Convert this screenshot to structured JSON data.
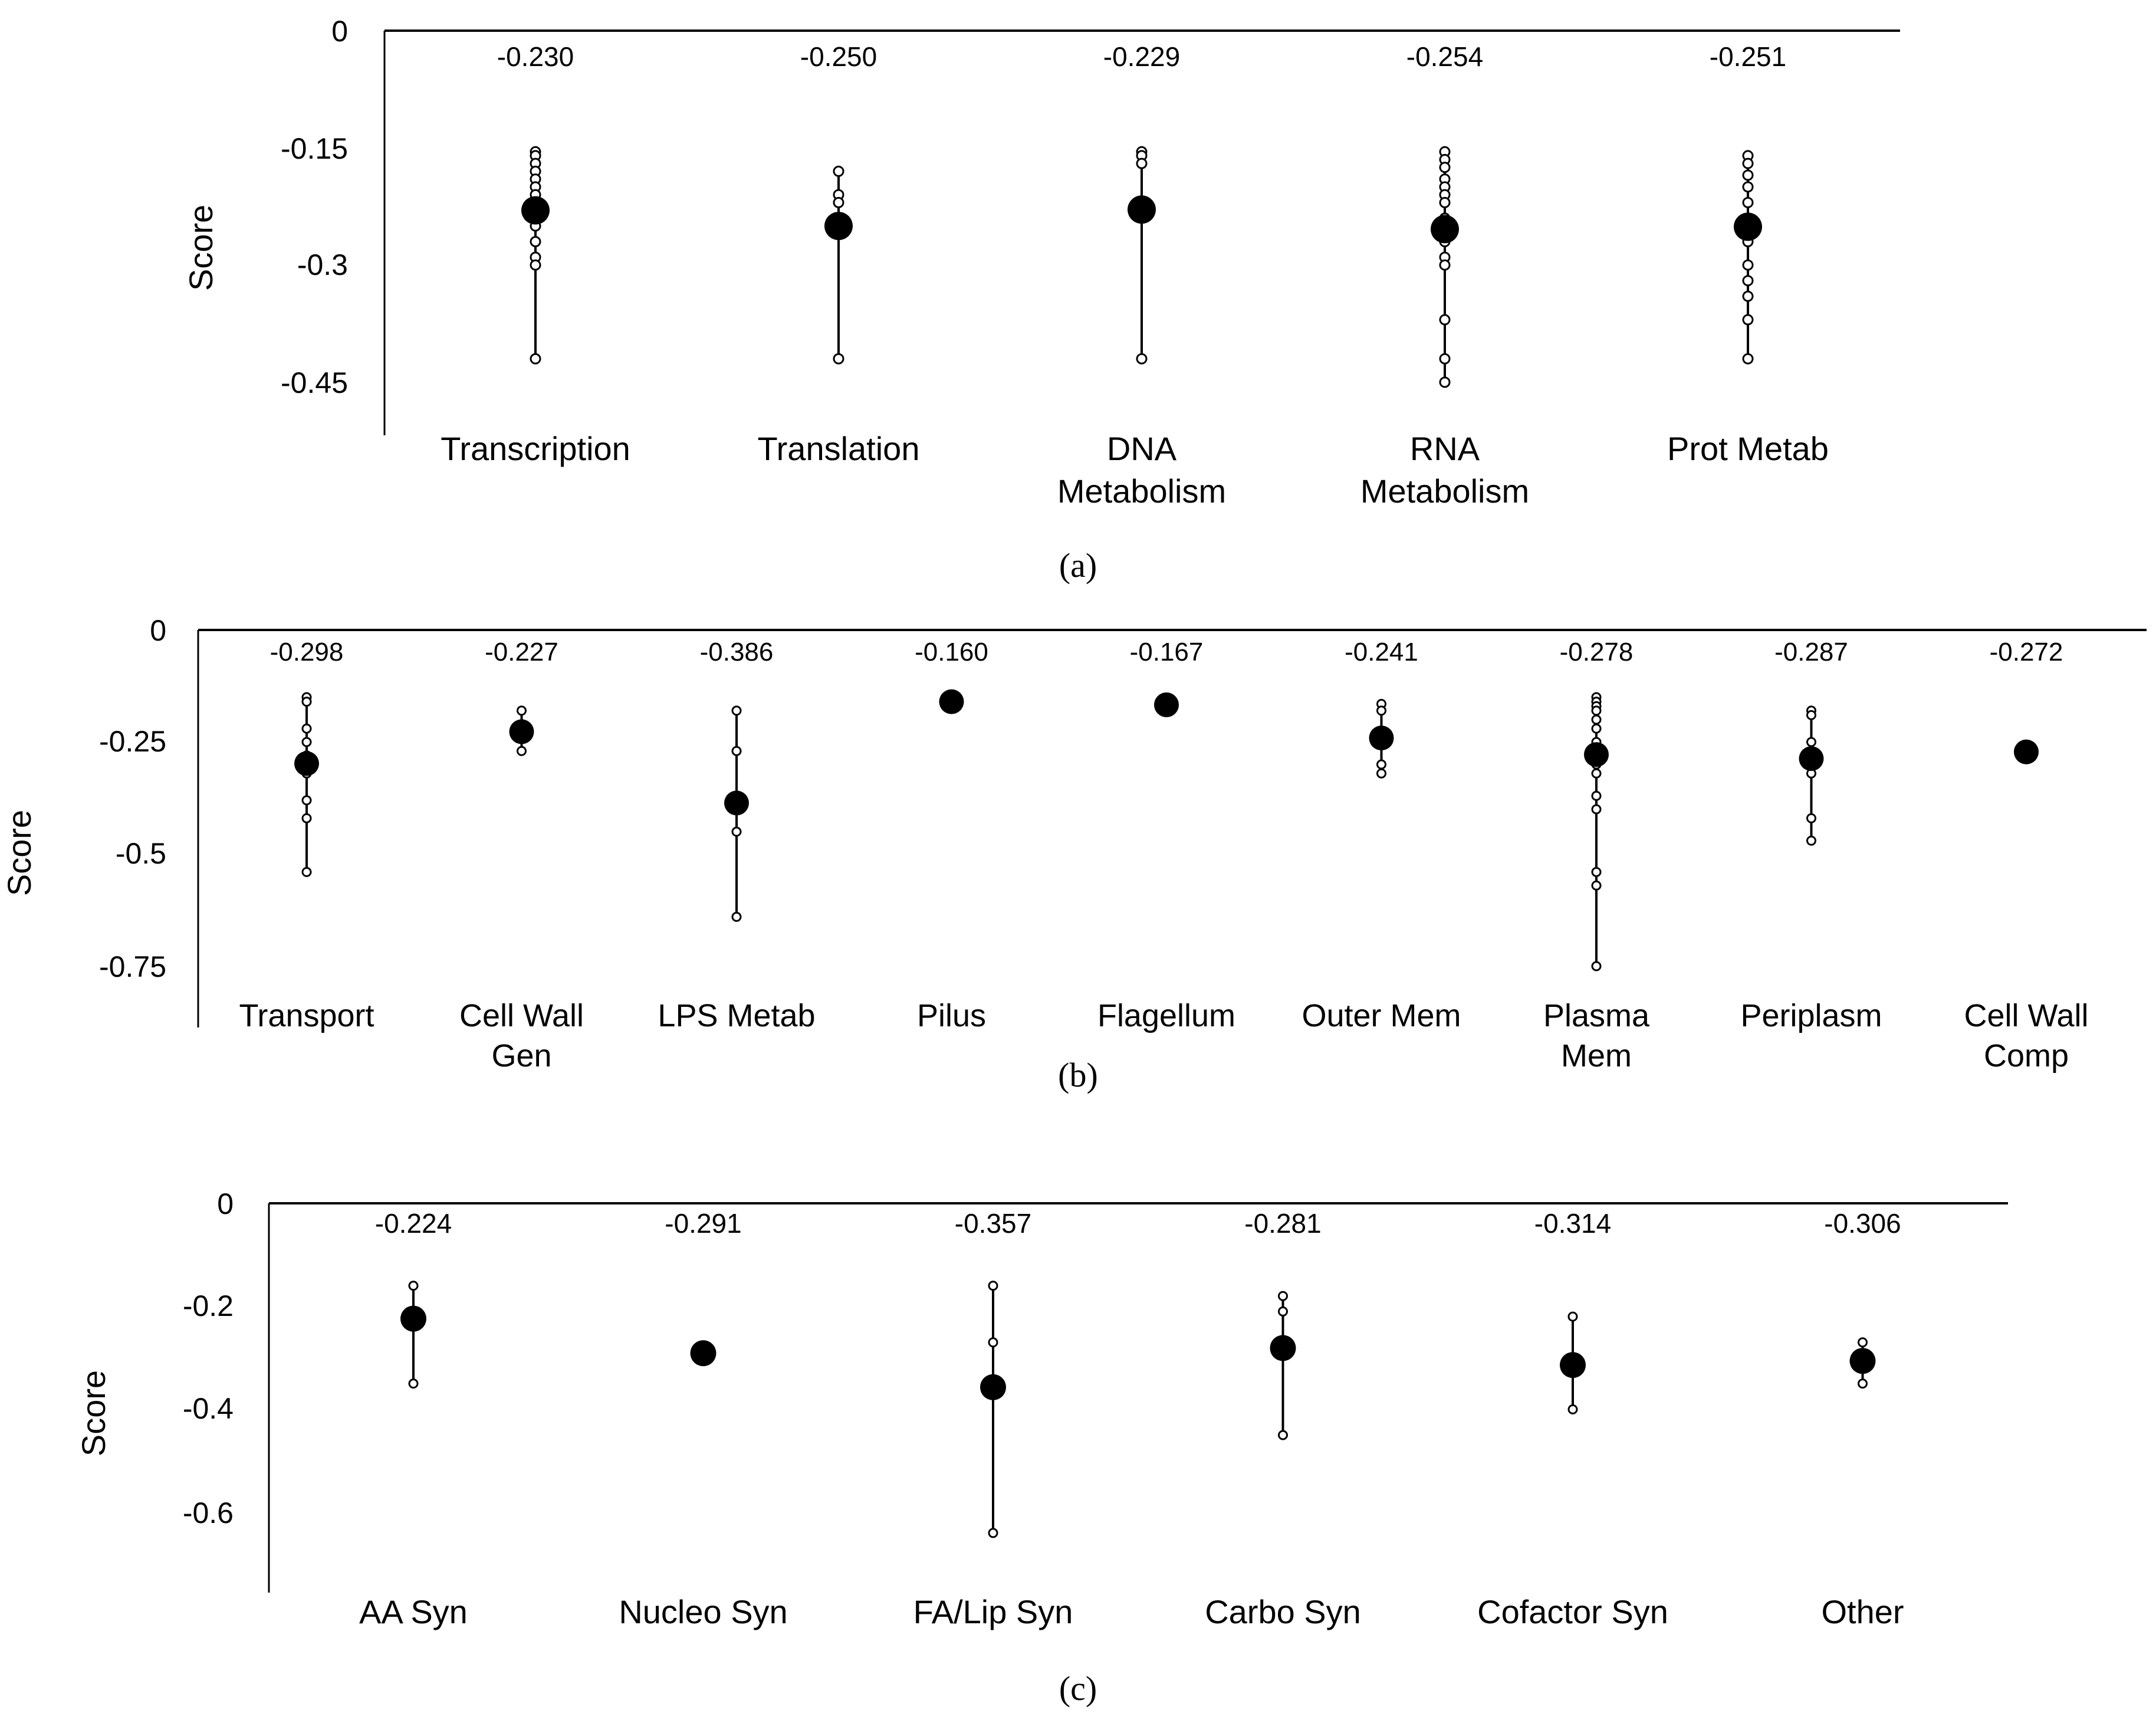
{
  "figure": {
    "panel_labels": [
      "(a)",
      "(b)",
      "(c)"
    ]
  },
  "colors": {
    "axis": "#000000",
    "marker": "#000000",
    "background": "#ffffff"
  },
  "chart_data": [
    {
      "panel": "(a)",
      "type": "scatter",
      "ylabel": "Score",
      "ylim": [
        -0.5,
        0
      ],
      "yticks": [
        0,
        -0.15,
        -0.3,
        -0.45
      ],
      "ytick_labels": [
        "0",
        "-0.15",
        "-0.3",
        "-0.45"
      ],
      "categories": [
        {
          "label": [
            "Transcription"
          ],
          "mean": -0.23,
          "mean_label": "-0.230",
          "min": -0.42,
          "max": -0.155,
          "points": [
            -0.155,
            -0.16,
            -0.17,
            -0.18,
            -0.19,
            -0.2,
            -0.21,
            -0.22,
            -0.25,
            -0.27,
            -0.29,
            -0.3,
            -0.42
          ]
        },
        {
          "label": [
            "Translation"
          ],
          "mean": -0.25,
          "mean_label": "-0.250",
          "min": -0.42,
          "max": -0.18,
          "points": [
            -0.18,
            -0.21,
            -0.22,
            -0.42
          ]
        },
        {
          "label": [
            "DNA",
            "Metabolism"
          ],
          "mean": -0.229,
          "mean_label": "-0.229",
          "min": -0.42,
          "max": -0.155,
          "points": [
            -0.155,
            -0.16,
            -0.17,
            -0.42
          ]
        },
        {
          "label": [
            "RNA",
            "Metabolism"
          ],
          "mean": -0.254,
          "mean_label": "-0.254",
          "min": -0.45,
          "max": -0.155,
          "points": [
            -0.155,
            -0.165,
            -0.175,
            -0.19,
            -0.2,
            -0.21,
            -0.22,
            -0.24,
            -0.25,
            -0.27,
            -0.29,
            -0.3,
            -0.37,
            -0.42,
            -0.45
          ]
        },
        {
          "label": [
            "Prot Metab"
          ],
          "mean": -0.251,
          "mean_label": "-0.251",
          "min": -0.42,
          "max": -0.16,
          "points": [
            -0.16,
            -0.17,
            -0.185,
            -0.2,
            -0.22,
            -0.24,
            -0.27,
            -0.3,
            -0.32,
            -0.34,
            -0.37,
            -0.42
          ]
        }
      ]
    },
    {
      "panel": "(b)",
      "type": "scatter",
      "ylabel": "Score",
      "ylim": [
        -0.85,
        0
      ],
      "yticks": [
        0,
        -0.25,
        -0.5,
        -0.75
      ],
      "ytick_labels": [
        "0",
        "-0.25",
        "-0.5",
        "-0.75"
      ],
      "categories": [
        {
          "label": [
            "Transport"
          ],
          "mean": -0.298,
          "mean_label": "-0.298",
          "min": -0.54,
          "max": -0.15,
          "points": [
            -0.15,
            -0.16,
            -0.22,
            -0.25,
            -0.28,
            -0.32,
            -0.38,
            -0.42,
            -0.54
          ]
        },
        {
          "label": [
            "Cell Wall",
            "Gen"
          ],
          "mean": -0.227,
          "mean_label": "-0.227",
          "min": -0.27,
          "max": -0.18,
          "points": [
            -0.18,
            -0.27
          ]
        },
        {
          "label": [
            "LPS Metab"
          ],
          "mean": -0.386,
          "mean_label": "-0.386",
          "min": -0.64,
          "max": -0.18,
          "points": [
            -0.18,
            -0.27,
            -0.45,
            -0.64
          ]
        },
        {
          "label": [
            "Pilus"
          ],
          "mean": -0.16,
          "mean_label": "-0.160",
          "min": -0.16,
          "max": -0.16,
          "points": []
        },
        {
          "label": [
            "Flagellum"
          ],
          "mean": -0.167,
          "mean_label": "-0.167",
          "min": -0.167,
          "max": -0.167,
          "points": []
        },
        {
          "label": [
            "Outer Mem"
          ],
          "mean": -0.241,
          "mean_label": "-0.241",
          "min": -0.32,
          "max": -0.165,
          "points": [
            -0.165,
            -0.18,
            -0.3,
            -0.32
          ]
        },
        {
          "label": [
            "Plasma",
            "Mem"
          ],
          "mean": -0.278,
          "mean_label": "-0.278",
          "min": -0.75,
          "max": -0.15,
          "points": [
            -0.15,
            -0.16,
            -0.17,
            -0.18,
            -0.2,
            -0.22,
            -0.25,
            -0.28,
            -0.3,
            -0.32,
            -0.37,
            -0.4,
            -0.54,
            -0.57,
            -0.75
          ]
        },
        {
          "label": [
            "Periplasm"
          ],
          "mean": -0.287,
          "mean_label": "-0.287",
          "min": -0.47,
          "max": -0.18,
          "points": [
            -0.18,
            -0.19,
            -0.25,
            -0.32,
            -0.42,
            -0.47
          ]
        },
        {
          "label": [
            "Cell Wall",
            "Comp"
          ],
          "mean": -0.272,
          "mean_label": "-0.272",
          "min": -0.272,
          "max": -0.272,
          "points": []
        }
      ]
    },
    {
      "panel": "(c)",
      "type": "scatter",
      "ylabel": "Score",
      "ylim": [
        -0.75,
        0
      ],
      "yticks": [
        0,
        -0.2,
        -0.4,
        -0.6
      ],
      "ytick_labels": [
        "0",
        "-0.2",
        "-0.4",
        "-0.6"
      ],
      "categories": [
        {
          "label": [
            "AA Syn"
          ],
          "mean": -0.224,
          "mean_label": "-0.224",
          "min": -0.35,
          "max": -0.16,
          "points": [
            -0.16,
            -0.35
          ]
        },
        {
          "label": [
            "Nucleo Syn"
          ],
          "mean": -0.291,
          "mean_label": "-0.291",
          "min": -0.291,
          "max": -0.291,
          "points": []
        },
        {
          "label": [
            "FA/Lip Syn"
          ],
          "mean": -0.357,
          "mean_label": "-0.357",
          "min": -0.64,
          "max": -0.16,
          "points": [
            -0.16,
            -0.27,
            -0.64
          ]
        },
        {
          "label": [
            "Carbo Syn"
          ],
          "mean": -0.281,
          "mean_label": "-0.281",
          "min": -0.45,
          "max": -0.18,
          "points": [
            -0.18,
            -0.21,
            -0.45
          ]
        },
        {
          "label": [
            "Cofactor Syn"
          ],
          "mean": -0.314,
          "mean_label": "-0.314",
          "min": -0.4,
          "max": -0.22,
          "points": [
            -0.22,
            -0.4
          ]
        },
        {
          "label": [
            "Other"
          ],
          "mean": -0.306,
          "mean_label": "-0.306",
          "min": -0.35,
          "max": -0.27,
          "points": [
            -0.27,
            -0.35
          ]
        }
      ]
    }
  ]
}
